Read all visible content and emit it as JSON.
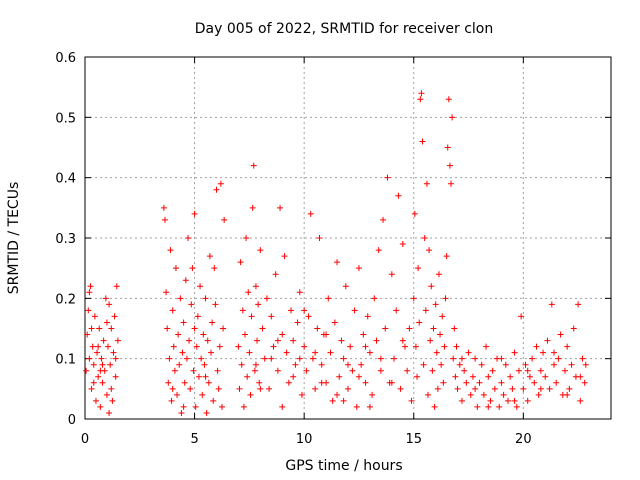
{
  "chart_data": {
    "type": "scatter",
    "title": "Day 005 of 2022, SRMTID for receiver clon",
    "xlabel": "GPS time / hours",
    "ylabel": "SRMTID / TECUs",
    "xlim": [
      0,
      24
    ],
    "ylim": [
      0,
      0.6
    ],
    "x_ticks": [
      0,
      5,
      10,
      15,
      20
    ],
    "y_ticks": [
      0,
      0.1,
      0.2,
      0.3,
      0.4,
      0.5,
      0.6
    ],
    "x_tick_labels": [
      "0",
      "5",
      "10",
      "15",
      "20"
    ],
    "y_tick_labels": [
      "0",
      "0.1",
      "0.2",
      "0.3",
      "0.4",
      "0.5",
      "0.6"
    ],
    "grid": true,
    "marker": "+",
    "color": "#ff0000",
    "series": [
      {
        "name": "SRMTID",
        "points": [
          [
            0.05,
            0.08
          ],
          [
            0.1,
            0.14
          ],
          [
            0.15,
            0.18
          ],
          [
            0.2,
            0.21
          ],
          [
            0.25,
            0.22
          ],
          [
            0.3,
            0.05
          ],
          [
            0.35,
            0.12
          ],
          [
            0.4,
            0.09
          ],
          [
            0.45,
            0.17
          ],
          [
            0.5,
            0.03
          ],
          [
            0.55,
            0.11
          ],
          [
            0.6,
            0.07
          ],
          [
            0.65,
            0.15
          ],
          [
            0.7,
            0.02
          ],
          [
            0.75,
            0.1
          ],
          [
            0.8,
            0.06
          ],
          [
            0.85,
            0.13
          ],
          [
            0.9,
            0.08
          ],
          [
            0.95,
            0.2
          ],
          [
            1.0,
            0.04
          ],
          [
            1.05,
            0.12
          ],
          [
            1.1,
            0.19
          ],
          [
            1.15,
            0.09
          ],
          [
            1.2,
            0.15
          ],
          [
            1.25,
            0.03
          ],
          [
            1.3,
            0.11
          ],
          [
            1.35,
            0.17
          ],
          [
            1.4,
            0.07
          ],
          [
            1.45,
            0.22
          ],
          [
            1.5,
            0.13
          ],
          [
            0.2,
            0.1
          ],
          [
            0.4,
            0.06
          ],
          [
            0.6,
            0.12
          ],
          [
            0.8,
            0.09
          ],
          [
            1.0,
            0.16
          ],
          [
            1.2,
            0.05
          ],
          [
            1.4,
            0.1
          ],
          [
            0.3,
            0.15
          ],
          [
            0.7,
            0.08
          ],
          [
            1.1,
            0.01
          ],
          [
            3.6,
            0.35
          ],
          [
            3.65,
            0.33
          ],
          [
            3.7,
            0.21
          ],
          [
            3.75,
            0.15
          ],
          [
            3.8,
            0.06
          ],
          [
            3.85,
            0.1
          ],
          [
            3.9,
            0.28
          ],
          [
            3.95,
            0.03
          ],
          [
            4.0,
            0.18
          ],
          [
            4.05,
            0.12
          ],
          [
            4.1,
            0.08
          ],
          [
            4.15,
            0.25
          ],
          [
            4.2,
            0.04
          ],
          [
            4.25,
            0.14
          ],
          [
            4.3,
            0.09
          ],
          [
            4.35,
            0.2
          ],
          [
            4.4,
            0.01
          ],
          [
            4.45,
            0.11
          ],
          [
            4.5,
            0.16
          ],
          [
            4.55,
            0.06
          ],
          [
            4.6,
            0.23
          ],
          [
            4.65,
            0.1
          ],
          [
            4.7,
            0.3
          ],
          [
            4.75,
            0.13
          ],
          [
            4.8,
            0.05
          ],
          [
            4.85,
            0.19
          ],
          [
            4.9,
            0.25
          ],
          [
            4.95,
            0.08
          ],
          [
            5.0,
            0.34
          ],
          [
            5.05,
            0.02
          ],
          [
            5.1,
            0.12
          ],
          [
            5.15,
            0.17
          ],
          [
            5.2,
            0.07
          ],
          [
            5.25,
            0.22
          ],
          [
            5.3,
            0.1
          ],
          [
            5.35,
            0.04
          ],
          [
            5.4,
            0.14
          ],
          [
            5.45,
            0.09
          ],
          [
            5.5,
            0.2
          ],
          [
            5.55,
            0.01
          ],
          [
            5.6,
            0.13
          ],
          [
            5.65,
            0.06
          ],
          [
            5.7,
            0.27
          ],
          [
            5.75,
            0.11
          ],
          [
            5.8,
            0.16
          ],
          [
            5.85,
            0.03
          ],
          [
            5.9,
            0.25
          ],
          [
            5.95,
            0.19
          ],
          [
            6.0,
            0.38
          ],
          [
            6.05,
            0.08
          ],
          [
            6.1,
            0.05
          ],
          [
            6.15,
            0.12
          ],
          [
            6.2,
            0.39
          ],
          [
            6.25,
            0.02
          ],
          [
            6.3,
            0.15
          ],
          [
            6.35,
            0.33
          ],
          [
            4.0,
            0.05
          ],
          [
            4.5,
            0.02
          ],
          [
            5.0,
            0.15
          ],
          [
            5.5,
            0.07
          ],
          [
            7.0,
            0.12
          ],
          [
            7.05,
            0.05
          ],
          [
            7.1,
            0.26
          ],
          [
            7.15,
            0.09
          ],
          [
            7.2,
            0.18
          ],
          [
            7.25,
            0.02
          ],
          [
            7.3,
            0.14
          ],
          [
            7.35,
            0.3
          ],
          [
            7.4,
            0.07
          ],
          [
            7.45,
            0.21
          ],
          [
            7.5,
            0.11
          ],
          [
            7.55,
            0.04
          ],
          [
            7.6,
            0.17
          ],
          [
            7.65,
            0.35
          ],
          [
            7.7,
            0.42
          ],
          [
            7.75,
            0.08
          ],
          [
            7.8,
            0.22
          ],
          [
            7.85,
            0.13
          ],
          [
            7.9,
            0.19
          ],
          [
            7.95,
            0.06
          ],
          [
            8.0,
            0.28
          ],
          [
            8.1,
            0.15
          ],
          [
            8.2,
            0.1
          ],
          [
            8.3,
            0.2
          ],
          [
            8.4,
            0.05
          ],
          [
            8.5,
            0.17
          ],
          [
            8.6,
            0.12
          ],
          [
            8.7,
            0.24
          ],
          [
            8.8,
            0.08
          ],
          [
            8.9,
            0.35
          ],
          [
            9.0,
            0.14
          ],
          [
            9.1,
            0.27
          ],
          [
            9.2,
            0.11
          ],
          [
            9.3,
            0.06
          ],
          [
            9.4,
            0.18
          ],
          [
            9.5,
            0.13
          ],
          [
            9.6,
            0.09
          ],
          [
            9.7,
            0.16
          ],
          [
            9.8,
            0.21
          ],
          [
            9.9,
            0.04
          ],
          [
            10.0,
            0.12
          ],
          [
            10.1,
            0.08
          ],
          [
            10.2,
            0.17
          ],
          [
            10.3,
            0.34
          ],
          [
            10.4,
            0.1
          ],
          [
            10.5,
            0.05
          ],
          [
            10.6,
            0.15
          ],
          [
            10.7,
            0.3
          ],
          [
            10.8,
            0.09
          ],
          [
            10.9,
            0.14
          ],
          [
            11.0,
            0.06
          ],
          [
            11.1,
            0.2
          ],
          [
            11.2,
            0.11
          ],
          [
            11.3,
            0.03
          ],
          [
            11.4,
            0.16
          ],
          [
            11.5,
            0.26
          ],
          [
            11.6,
            0.07
          ],
          [
            11.7,
            0.13
          ],
          [
            11.8,
            0.1
          ],
          [
            11.9,
            0.22
          ],
          [
            12.0,
            0.05
          ],
          [
            12.1,
            0.12
          ],
          [
            12.2,
            0.08
          ],
          [
            12.3,
            0.18
          ],
          [
            12.4,
            0.02
          ],
          [
            12.5,
            0.25
          ],
          [
            12.6,
            0.09
          ],
          [
            12.7,
            0.14
          ],
          [
            12.8,
            0.06
          ],
          [
            12.9,
            0.17
          ],
          [
            13.0,
            0.11
          ],
          [
            13.1,
            0.04
          ],
          [
            13.2,
            0.2
          ],
          [
            13.3,
            0.13
          ],
          [
            13.4,
            0.28
          ],
          [
            13.5,
            0.08
          ],
          [
            13.6,
            0.33
          ],
          [
            13.7,
            0.15
          ],
          [
            13.8,
            0.4
          ],
          [
            13.9,
            0.06
          ],
          [
            14.0,
            0.24
          ],
          [
            14.1,
            0.1
          ],
          [
            14.2,
            0.18
          ],
          [
            14.3,
            0.37
          ],
          [
            14.4,
            0.05
          ],
          [
            14.5,
            0.29
          ],
          [
            14.6,
            0.12
          ],
          [
            14.7,
            0.08
          ],
          [
            14.8,
            0.15
          ],
          [
            14.9,
            0.03
          ],
          [
            8.0,
            0.05
          ],
          [
            8.5,
            0.1
          ],
          [
            9.0,
            0.02
          ],
          [
            9.5,
            0.07
          ],
          [
            10.0,
            0.18
          ],
          [
            10.5,
            0.11
          ],
          [
            11.0,
            0.14
          ],
          [
            11.5,
            0.04
          ],
          [
            12.0,
            0.09
          ],
          [
            12.5,
            0.07
          ],
          [
            13.0,
            0.02
          ],
          [
            13.5,
            0.1
          ],
          [
            14.0,
            0.06
          ],
          [
            14.5,
            0.13
          ],
          [
            7.8,
            0.09
          ],
          [
            8.8,
            0.13
          ],
          [
            9.8,
            0.1
          ],
          [
            10.8,
            0.06
          ],
          [
            11.8,
            0.03
          ],
          [
            12.8,
            0.12
          ],
          [
            15.0,
            0.2
          ],
          [
            15.05,
            0.34
          ],
          [
            15.1,
            0.12
          ],
          [
            15.15,
            0.07
          ],
          [
            15.2,
            0.25
          ],
          [
            15.25,
            0.16
          ],
          [
            15.3,
            0.53
          ],
          [
            15.35,
            0.54
          ],
          [
            15.4,
            0.46
          ],
          [
            15.45,
            0.09
          ],
          [
            15.5,
            0.3
          ],
          [
            15.55,
            0.18
          ],
          [
            15.6,
            0.39
          ],
          [
            15.65,
            0.04
          ],
          [
            15.7,
            0.28
          ],
          [
            15.75,
            0.13
          ],
          [
            15.8,
            0.22
          ],
          [
            15.85,
            0.08
          ],
          [
            15.9,
            0.15
          ],
          [
            15.95,
            0.02
          ],
          [
            16.0,
            0.19
          ],
          [
            16.05,
            0.11
          ],
          [
            16.1,
            0.05
          ],
          [
            16.15,
            0.24
          ],
          [
            16.2,
            0.14
          ],
          [
            16.25,
            0.09
          ],
          [
            16.3,
            0.17
          ],
          [
            16.35,
            0.06
          ],
          [
            16.4,
            0.12
          ],
          [
            16.45,
            0.2
          ],
          [
            16.5,
            0.27
          ],
          [
            16.55,
            0.45
          ],
          [
            16.6,
            0.53
          ],
          [
            16.65,
            0.42
          ],
          [
            16.7,
            0.39
          ],
          [
            16.75,
            0.5
          ],
          [
            16.8,
            0.1
          ],
          [
            16.85,
            0.15
          ],
          [
            16.9,
            0.07
          ],
          [
            16.95,
            0.12
          ],
          [
            17.0,
            0.05
          ],
          [
            17.1,
            0.09
          ],
          [
            17.2,
            0.03
          ],
          [
            17.3,
            0.08
          ],
          [
            17.4,
            0.06
          ],
          [
            17.5,
            0.11
          ],
          [
            17.6,
            0.04
          ],
          [
            17.7,
            0.07
          ],
          [
            17.8,
            0.1
          ],
          [
            17.9,
            0.02
          ],
          [
            18.0,
            0.06
          ],
          [
            18.1,
            0.09
          ],
          [
            18.2,
            0.04
          ],
          [
            18.3,
            0.12
          ],
          [
            18.4,
            0.07
          ],
          [
            18.5,
            0.03
          ],
          [
            18.6,
            0.08
          ],
          [
            18.7,
            0.05
          ],
          [
            18.8,
            0.1
          ],
          [
            18.9,
            0.02
          ],
          [
            19.0,
            0.06
          ],
          [
            19.1,
            0.04
          ],
          [
            19.2,
            0.09
          ],
          [
            19.3,
            0.03
          ],
          [
            19.4,
            0.07
          ],
          [
            19.5,
            0.05
          ],
          [
            19.6,
            0.11
          ],
          [
            19.7,
            0.02
          ],
          [
            19.8,
            0.08
          ],
          [
            19.9,
            0.17
          ],
          [
            20.0,
            0.05
          ],
          [
            20.1,
            0.09
          ],
          [
            20.2,
            0.03
          ],
          [
            20.3,
            0.07
          ],
          [
            20.4,
            0.1
          ],
          [
            20.5,
            0.06
          ],
          [
            20.6,
            0.12
          ],
          [
            20.7,
            0.04
          ],
          [
            20.8,
            0.08
          ],
          [
            20.9,
            0.11
          ],
          [
            21.0,
            0.07
          ],
          [
            21.1,
            0.13
          ],
          [
            21.2,
            0.05
          ],
          [
            21.3,
            0.19
          ],
          [
            21.4,
            0.09
          ],
          [
            21.5,
            0.06
          ],
          [
            21.6,
            0.1
          ],
          [
            21.7,
            0.14
          ],
          [
            21.8,
            0.04
          ],
          [
            21.9,
            0.08
          ],
          [
            22.0,
            0.12
          ],
          [
            22.1,
            0.05
          ],
          [
            22.2,
            0.09
          ],
          [
            22.3,
            0.15
          ],
          [
            22.4,
            0.07
          ],
          [
            22.5,
            0.19
          ],
          [
            22.6,
            0.03
          ],
          [
            22.7,
            0.1
          ],
          [
            22.8,
            0.06
          ],
          [
            22.85,
            0.09
          ],
          [
            17.2,
            0.1
          ],
          [
            17.8,
            0.05
          ],
          [
            18.4,
            0.02
          ],
          [
            19.0,
            0.1
          ],
          [
            19.6,
            0.03
          ],
          [
            20.2,
            0.08
          ],
          [
            20.8,
            0.05
          ],
          [
            21.4,
            0.11
          ],
          [
            22.0,
            0.04
          ],
          [
            22.6,
            0.07
          ]
        ]
      }
    ]
  }
}
